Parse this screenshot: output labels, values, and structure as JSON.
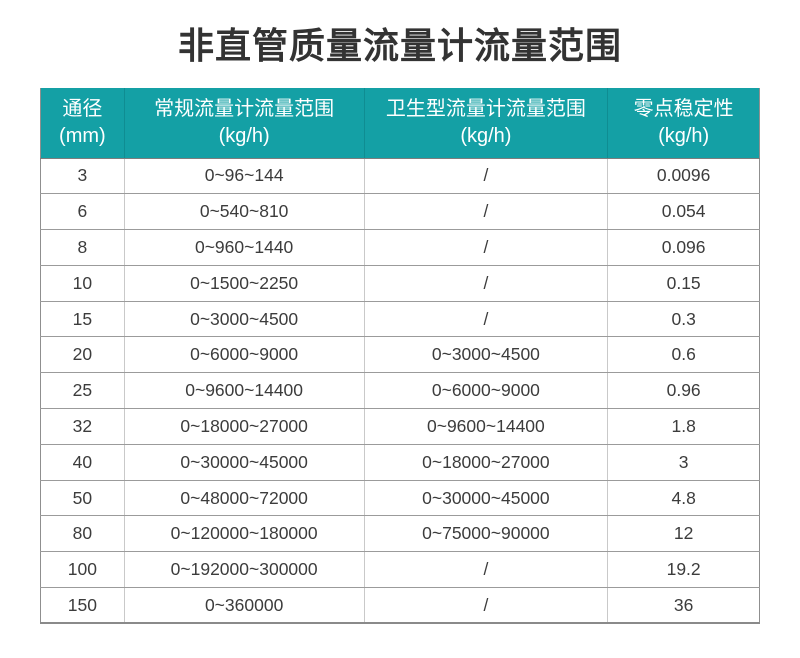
{
  "title": "非直管质量流量计流量范围",
  "colors": {
    "header_bg": "#14a0a5",
    "header_text": "#ffffff",
    "title_text": "#333333",
    "cell_text": "#3c3c3c",
    "row_border": "#9b9b9b",
    "col_border": "#c9c9c9",
    "outer_border": "#8a8a8a"
  },
  "chart_data": {
    "type": "table",
    "title": "非直管质量流量计流量范围",
    "columns": [
      {
        "label": "通径",
        "unit": "(mm)"
      },
      {
        "label": "常规流量计流量范围",
        "unit": "(kg/h)"
      },
      {
        "label": "卫生型流量计流量范围",
        "unit": "(kg/h)"
      },
      {
        "label": "零点稳定性",
        "unit": "(kg/h)"
      }
    ],
    "rows": [
      [
        "3",
        "0~96~144",
        "/",
        "0.0096"
      ],
      [
        "6",
        "0~540~810",
        "/",
        "0.054"
      ],
      [
        "8",
        "0~960~1440",
        "/",
        "0.096"
      ],
      [
        "10",
        "0~1500~2250",
        "/",
        "0.15"
      ],
      [
        "15",
        "0~3000~4500",
        "/",
        "0.3"
      ],
      [
        "20",
        "0~6000~9000",
        "0~3000~4500",
        "0.6"
      ],
      [
        "25",
        "0~9600~14400",
        "0~6000~9000",
        "0.96"
      ],
      [
        "32",
        "0~18000~27000",
        "0~9600~14400",
        "1.8"
      ],
      [
        "40",
        "0~30000~45000",
        "0~18000~27000",
        "3"
      ],
      [
        "50",
        "0~48000~72000",
        "0~30000~45000",
        "4.8"
      ],
      [
        "80",
        "0~120000~180000",
        "0~75000~90000",
        "12"
      ],
      [
        "100",
        "0~192000~300000",
        "/",
        "19.2"
      ],
      [
        "150",
        "0~360000",
        "/",
        "36"
      ]
    ]
  }
}
